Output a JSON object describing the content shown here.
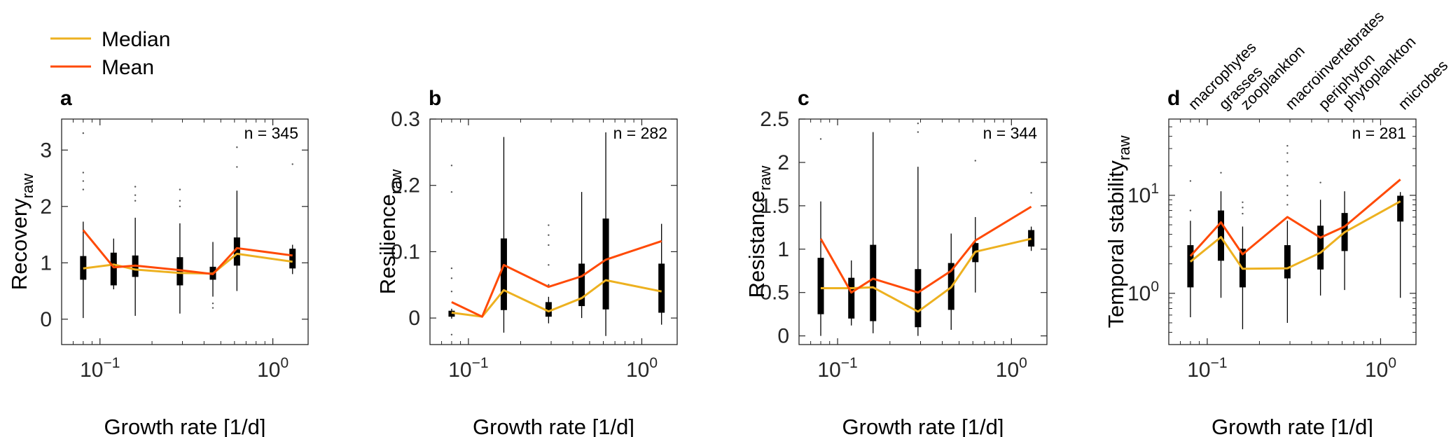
{
  "legend": {
    "entries": [
      {
        "label": "Median",
        "color": "#EDB120"
      },
      {
        "label": "Mean",
        "color": "#FF4A06"
      }
    ],
    "placement": "top-left"
  },
  "colors": {
    "median": "#EDB120",
    "mean": "#FF4A06",
    "box": "#000000"
  },
  "x_categories": [
    "macrophytes",
    "grasses",
    "zooplankton",
    "macroinvertebrates",
    "periphyton",
    "phytoplankton",
    "microbes"
  ],
  "x_growth_rates": [
    0.08,
    0.12,
    0.16,
    0.29,
    0.45,
    0.62,
    1.3
  ],
  "chart_data": [
    {
      "type": "box",
      "panel_label": "a",
      "n_label": "n = 345",
      "xlabel": "Growth rate [1/d]",
      "ylabel_main": "Recovery",
      "ylabel_sub": "raw",
      "xscale": "log",
      "xlim": [
        0.06,
        1.6
      ],
      "xticks": [
        {
          "value": 0.1,
          "base": "10",
          "exp": "−1"
        },
        {
          "value": 1,
          "base": "10",
          "exp": "0"
        }
      ],
      "yscale": "linear",
      "ylim": [
        -0.45,
        3.55
      ],
      "yticks": [
        {
          "value": 0,
          "label": "0"
        },
        {
          "value": 1,
          "label": "1"
        },
        {
          "value": 2,
          "label": "2"
        },
        {
          "value": 3,
          "label": "3"
        }
      ],
      "grid": false,
      "boxes": [
        {
          "x": 0.08,
          "q1": 0.7,
          "q3": 1.12,
          "wlo": 0.02,
          "whi": 1.73,
          "out": [
            2.3,
            2.45,
            2.6,
            3.3
          ]
        },
        {
          "x": 0.12,
          "q1": 0.6,
          "q3": 1.18,
          "wlo": 0.53,
          "whi": 1.43,
          "out": []
        },
        {
          "x": 0.16,
          "q1": 0.75,
          "q3": 1.13,
          "wlo": 0.06,
          "whi": 1.8,
          "out": [
            2.1,
            2.2,
            2.35
          ]
        },
        {
          "x": 0.29,
          "q1": 0.6,
          "q3": 1.1,
          "wlo": 0.1,
          "whi": 1.7,
          "out": [
            2.0,
            2.1,
            2.3
          ]
        },
        {
          "x": 0.45,
          "q1": 0.7,
          "q3": 0.93,
          "wlo": 0.4,
          "whi": 1.37,
          "out": [
            0.2,
            0.28
          ]
        },
        {
          "x": 0.62,
          "q1": 0.95,
          "q3": 1.45,
          "wlo": 0.5,
          "whi": 2.28,
          "out": [
            2.7,
            3.05
          ]
        },
        {
          "x": 1.3,
          "q1": 0.9,
          "q3": 1.25,
          "wlo": 0.8,
          "whi": 1.32,
          "out": [
            2.75
          ]
        }
      ],
      "series": [
        {
          "name": "Median",
          "x": [
            0.08,
            0.12,
            0.16,
            0.29,
            0.45,
            0.62,
            1.3
          ],
          "y": [
            0.9,
            0.97,
            0.88,
            0.82,
            0.81,
            1.16,
            1.02
          ]
        },
        {
          "name": "Mean",
          "x": [
            0.08,
            0.12,
            0.16,
            0.29,
            0.45,
            0.62,
            1.3
          ],
          "y": [
            1.58,
            0.92,
            0.95,
            0.87,
            0.8,
            1.26,
            1.13
          ]
        }
      ]
    },
    {
      "type": "box",
      "panel_label": "b",
      "n_label": "n = 282",
      "xlabel": "Growth rate [1/d]",
      "ylabel_main": "Resilience",
      "ylabel_sub": "raw",
      "xscale": "log",
      "xlim": [
        0.06,
        1.6
      ],
      "xticks": [
        {
          "value": 0.1,
          "base": "10",
          "exp": "−1"
        },
        {
          "value": 1,
          "base": "10",
          "exp": "0"
        }
      ],
      "yscale": "linear",
      "ylim": [
        -0.04,
        0.3
      ],
      "yticks": [
        {
          "value": 0,
          "label": "0"
        },
        {
          "value": 0.1,
          "label": "0.1"
        },
        {
          "value": 0.2,
          "label": "0.2"
        },
        {
          "value": 0.3,
          "label": "0.3"
        }
      ],
      "grid": false,
      "boxes": [
        {
          "x": 0.08,
          "q1": 0.002,
          "q3": 0.011,
          "wlo": -0.001,
          "whi": 0.014,
          "out": [
            -0.025,
            0.04,
            0.06,
            0.075,
            0.19,
            0.23
          ]
        },
        {
          "x": 0.16,
          "q1": 0.012,
          "q3": 0.12,
          "wlo": -0.022,
          "whi": 0.273,
          "out": []
        },
        {
          "x": 0.29,
          "q1": 0.002,
          "q3": 0.024,
          "wlo": -0.008,
          "whi": 0.032,
          "out": [
            0.05,
            0.08,
            0.11,
            0.125,
            0.14
          ]
        },
        {
          "x": 0.45,
          "q1": 0.018,
          "q3": 0.082,
          "wlo": 0.0,
          "whi": 0.19,
          "out": []
        },
        {
          "x": 0.62,
          "q1": 0.013,
          "q3": 0.15,
          "wlo": -0.027,
          "whi": 0.28,
          "out": []
        },
        {
          "x": 1.3,
          "q1": 0.008,
          "q3": 0.082,
          "wlo": -0.01,
          "whi": 0.142,
          "out": []
        }
      ],
      "series": [
        {
          "name": "Median",
          "x": [
            0.08,
            0.12,
            0.16,
            0.29,
            0.45,
            0.62,
            1.3
          ],
          "y": [
            0.008,
            0.002,
            0.042,
            0.01,
            0.03,
            0.057,
            0.04
          ]
        },
        {
          "name": "Mean",
          "x": [
            0.08,
            0.12,
            0.16,
            0.29,
            0.45,
            0.62,
            1.3
          ],
          "y": [
            0.024,
            0.002,
            0.08,
            0.047,
            0.063,
            0.088,
            0.116
          ]
        }
      ]
    },
    {
      "type": "box",
      "panel_label": "c",
      "n_label": "n = 344",
      "xlabel": "Growth rate [1/d]",
      "ylabel_main": "Resistance",
      "ylabel_sub": "raw",
      "xscale": "log",
      "xlim": [
        0.06,
        1.6
      ],
      "xticks": [
        {
          "value": 0.1,
          "base": "10",
          "exp": "−1"
        },
        {
          "value": 1,
          "base": "10",
          "exp": "0"
        }
      ],
      "yscale": "linear",
      "ylim": [
        -0.1,
        2.5
      ],
      "yticks": [
        {
          "value": 0,
          "label": "0"
        },
        {
          "value": 0.5,
          "label": "0.5"
        },
        {
          "value": 1,
          "label": "1"
        },
        {
          "value": 1.5,
          "label": "1.5"
        },
        {
          "value": 2,
          "label": "2"
        },
        {
          "value": 2.5,
          "label": "2.5"
        }
      ],
      "grid": false,
      "boxes": [
        {
          "x": 0.08,
          "q1": 0.25,
          "q3": 0.9,
          "wlo": 0.0,
          "whi": 1.55,
          "out": [
            2.27
          ]
        },
        {
          "x": 0.12,
          "q1": 0.2,
          "q3": 0.67,
          "wlo": 0.12,
          "whi": 0.87,
          "out": []
        },
        {
          "x": 0.16,
          "q1": 0.17,
          "q3": 1.05,
          "wlo": 0.03,
          "whi": 2.35,
          "out": []
        },
        {
          "x": 0.29,
          "q1": 0.1,
          "q3": 0.77,
          "wlo": 0.0,
          "whi": 1.95,
          "out": [
            2.35,
            2.45
          ]
        },
        {
          "x": 0.45,
          "q1": 0.3,
          "q3": 0.84,
          "wlo": 0.07,
          "whi": 1.18,
          "out": []
        },
        {
          "x": 0.62,
          "q1": 0.85,
          "q3": 1.07,
          "wlo": 0.5,
          "whi": 1.37,
          "out": [
            2.02
          ]
        },
        {
          "x": 1.3,
          "q1": 1.03,
          "q3": 1.22,
          "wlo": 0.98,
          "whi": 1.26,
          "out": [
            1.65
          ]
        }
      ],
      "series": [
        {
          "name": "Median",
          "x": [
            0.08,
            0.12,
            0.16,
            0.29,
            0.45,
            0.62,
            1.3
          ],
          "y": [
            0.55,
            0.55,
            0.56,
            0.28,
            0.56,
            0.97,
            1.12
          ]
        },
        {
          "name": "Mean",
          "x": [
            0.08,
            0.12,
            0.16,
            0.29,
            0.45,
            0.62,
            1.3
          ],
          "y": [
            1.12,
            0.5,
            0.66,
            0.5,
            0.75,
            1.1,
            1.49
          ]
        }
      ]
    },
    {
      "type": "box",
      "panel_label": "d",
      "n_label": "n = 281",
      "xlabel": "Growth rate [1/d]",
      "ylabel_main": "Temporal stability",
      "ylabel_sub": "raw",
      "xscale": "log",
      "xlim": [
        0.06,
        1.6
      ],
      "xticks": [
        {
          "value": 0.1,
          "base": "10",
          "exp": "−1"
        },
        {
          "value": 1,
          "base": "10",
          "exp": "0"
        }
      ],
      "yscale": "log",
      "ylim": [
        0.3,
        60
      ],
      "yticks": [
        {
          "value": 1,
          "base": "10",
          "exp": "0"
        },
        {
          "value": 10,
          "base": "10",
          "exp": "1"
        }
      ],
      "grid": false,
      "boxes": [
        {
          "x": 0.08,
          "q1": 1.15,
          "q3": 3.1,
          "wlo": 0.57,
          "whi": 5.5,
          "out": [
            7.0,
            14.0
          ]
        },
        {
          "x": 0.12,
          "q1": 2.15,
          "q3": 7.0,
          "wlo": 0.9,
          "whi": 11.0,
          "out": [
            17.0
          ]
        },
        {
          "x": 0.16,
          "q1": 1.15,
          "q3": 2.85,
          "wlo": 0.43,
          "whi": 4.8,
          "out": [
            6.5,
            7.5,
            8.5
          ]
        },
        {
          "x": 0.29,
          "q1": 1.42,
          "q3": 3.1,
          "wlo": 0.5,
          "whi": 5.5,
          "out": [
            8.0,
            10.0,
            12.5,
            16.0,
            22.0,
            27.0,
            32.0
          ]
        },
        {
          "x": 0.45,
          "q1": 1.75,
          "q3": 4.9,
          "wlo": 0.95,
          "whi": 9.0,
          "out": [
            13.5
          ]
        },
        {
          "x": 0.62,
          "q1": 2.7,
          "q3": 6.6,
          "wlo": 1.08,
          "whi": 11.0,
          "out": []
        },
        {
          "x": 1.3,
          "q1": 5.4,
          "q3": 9.9,
          "wlo": 0.9,
          "whi": 10.8,
          "out": []
        }
      ],
      "series": [
        {
          "name": "Median",
          "x": [
            0.08,
            0.12,
            0.16,
            0.29,
            0.45,
            0.62,
            1.3
          ],
          "y": [
            2.1,
            3.75,
            1.78,
            1.8,
            2.6,
            4.2,
            8.7
          ]
        },
        {
          "name": "Mean",
          "x": [
            0.08,
            0.12,
            0.16,
            0.29,
            0.45,
            0.62,
            1.3
          ],
          "y": [
            2.4,
            5.3,
            2.5,
            6.0,
            3.7,
            4.8,
            14.5
          ]
        }
      ]
    }
  ]
}
